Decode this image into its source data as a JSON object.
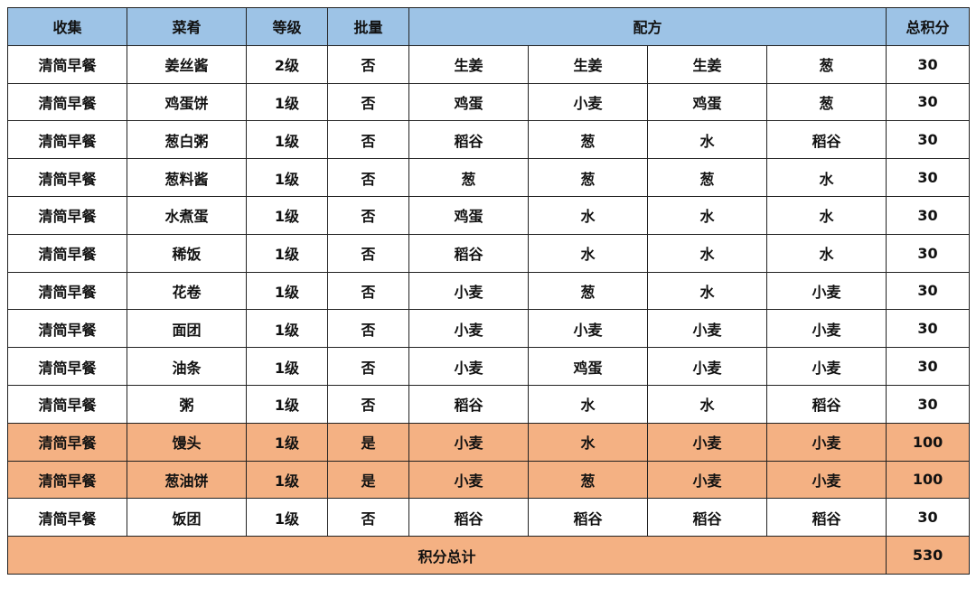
{
  "colors": {
    "header_bg": "#9dc3e6",
    "highlight_bg": "#f4b183",
    "border": "#222222"
  },
  "headers": [
    "收集",
    "菜肴",
    "等级",
    "批量",
    "配方",
    "总积分"
  ],
  "rows": [
    {
      "collection": "清简早餐",
      "dish": "姜丝酱",
      "level": "2级",
      "batch": "否",
      "recipe": [
        "生姜",
        "生姜",
        "生姜",
        "葱"
      ],
      "points": "30",
      "highlight": false
    },
    {
      "collection": "清简早餐",
      "dish": "鸡蛋饼",
      "level": "1级",
      "batch": "否",
      "recipe": [
        "鸡蛋",
        "小麦",
        "鸡蛋",
        "葱"
      ],
      "points": "30",
      "highlight": false
    },
    {
      "collection": "清简早餐",
      "dish": "葱白粥",
      "level": "1级",
      "batch": "否",
      "recipe": [
        "稻谷",
        "葱",
        "水",
        "稻谷"
      ],
      "points": "30",
      "highlight": false
    },
    {
      "collection": "清简早餐",
      "dish": "葱料酱",
      "level": "1级",
      "batch": "否",
      "recipe": [
        "葱",
        "葱",
        "葱",
        "水"
      ],
      "points": "30",
      "highlight": false
    },
    {
      "collection": "清简早餐",
      "dish": "水煮蛋",
      "level": "1级",
      "batch": "否",
      "recipe": [
        "鸡蛋",
        "水",
        "水",
        "水"
      ],
      "points": "30",
      "highlight": false
    },
    {
      "collection": "清简早餐",
      "dish": "稀饭",
      "level": "1级",
      "batch": "否",
      "recipe": [
        "稻谷",
        "水",
        "水",
        "水"
      ],
      "points": "30",
      "highlight": false
    },
    {
      "collection": "清简早餐",
      "dish": "花卷",
      "level": "1级",
      "batch": "否",
      "recipe": [
        "小麦",
        "葱",
        "水",
        "小麦"
      ],
      "points": "30",
      "highlight": false
    },
    {
      "collection": "清简早餐",
      "dish": "面团",
      "level": "1级",
      "batch": "否",
      "recipe": [
        "小麦",
        "小麦",
        "小麦",
        "小麦"
      ],
      "points": "30",
      "highlight": false
    },
    {
      "collection": "清简早餐",
      "dish": "油条",
      "level": "1级",
      "batch": "否",
      "recipe": [
        "小麦",
        "鸡蛋",
        "小麦",
        "小麦"
      ],
      "points": "30",
      "highlight": false
    },
    {
      "collection": "清简早餐",
      "dish": "粥",
      "level": "1级",
      "batch": "否",
      "recipe": [
        "稻谷",
        "水",
        "水",
        "稻谷"
      ],
      "points": "30",
      "highlight": false
    },
    {
      "collection": "清简早餐",
      "dish": "馒头",
      "level": "1级",
      "batch": "是",
      "recipe": [
        "小麦",
        "水",
        "小麦",
        "小麦"
      ],
      "points": "100",
      "highlight": true
    },
    {
      "collection": "清简早餐",
      "dish": "葱油饼",
      "level": "1级",
      "batch": "是",
      "recipe": [
        "小麦",
        "葱",
        "小麦",
        "小麦"
      ],
      "points": "100",
      "highlight": true
    },
    {
      "collection": "清简早餐",
      "dish": "饭团",
      "level": "1级",
      "batch": "否",
      "recipe": [
        "稻谷",
        "稻谷",
        "稻谷",
        "稻谷"
      ],
      "points": "30",
      "highlight": false
    }
  ],
  "total": {
    "label": "积分总计",
    "value": "530"
  }
}
